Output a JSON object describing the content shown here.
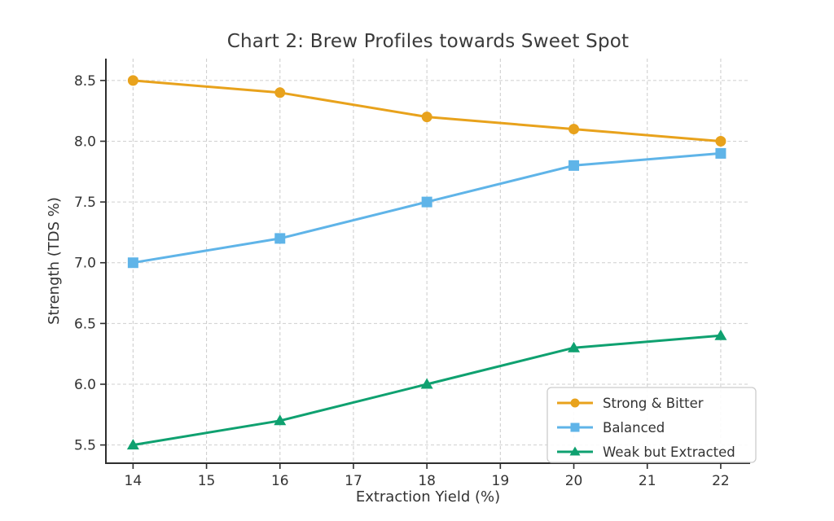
{
  "chart_data": {
    "type": "line",
    "title": "Chart 2: Brew Profiles towards Sweet Spot",
    "xlabel": "Extraction Yield (%)",
    "ylabel": "Strength (TDS %)",
    "x": [
      14,
      16,
      18,
      20,
      22
    ],
    "series": [
      {
        "name": "Strong & Bitter",
        "values": [
          8.5,
          8.4,
          8.2,
          8.1,
          8.0
        ],
        "color": "#E8A21C",
        "marker": "circle"
      },
      {
        "name": "Balanced",
        "values": [
          7.0,
          7.2,
          7.5,
          7.8,
          7.9
        ],
        "color": "#5FB4E8",
        "marker": "square"
      },
      {
        "name": "Weak but Extracted",
        "values": [
          5.5,
          5.7,
          6.0,
          6.3,
          6.4
        ],
        "color": "#0FA170",
        "marker": "triangle"
      }
    ],
    "x_tick_values": [
      14,
      15,
      16,
      17,
      18,
      19,
      20,
      21,
      22
    ],
    "x_tick_labels": [
      "14",
      "15",
      "16",
      "17",
      "18",
      "19",
      "20",
      "21",
      "22"
    ],
    "y_tick_values": [
      5.5,
      6.0,
      6.5,
      7.0,
      7.5,
      8.0,
      8.5
    ],
    "y_tick_labels": [
      "5.5",
      "6.0",
      "6.5",
      "7.0",
      "7.5",
      "8.0",
      "8.5"
    ],
    "xlim": [
      13.63,
      22.4
    ],
    "ylim": [
      5.35,
      8.68
    ],
    "grid": true,
    "legend_position": "lower right"
  },
  "colors": {
    "background": "#ffffff",
    "spine": "#2e2e2e",
    "grid": "#cfcfcf",
    "tick_text": "#333333",
    "title_text": "#3a3a3a",
    "legend_border": "#cccccc",
    "legend_bg": "rgba(255,255,255,0.9)"
  }
}
